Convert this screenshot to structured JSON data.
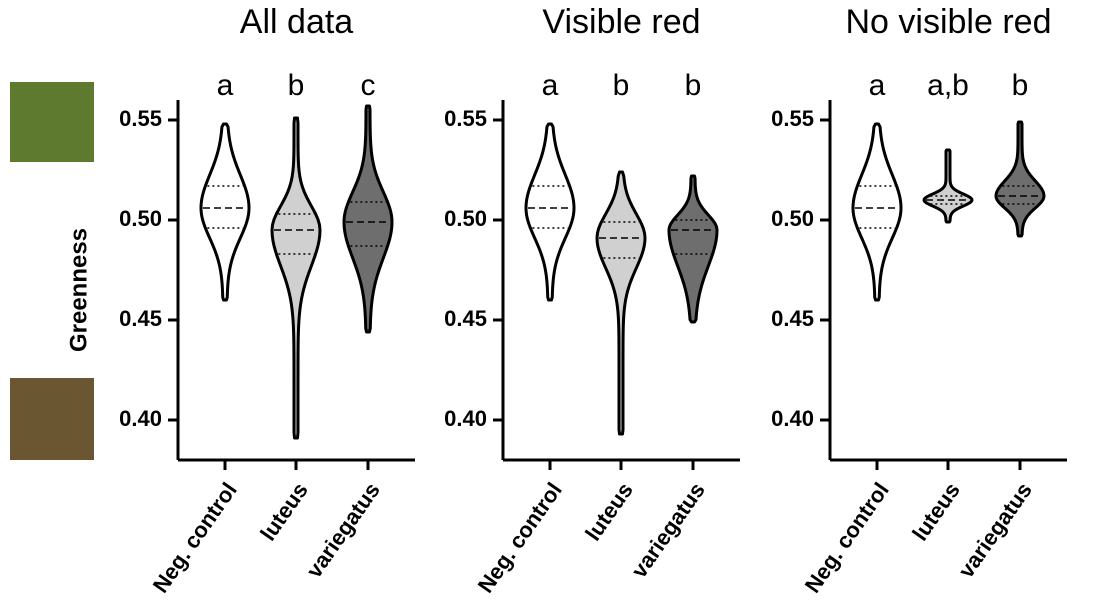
{
  "chart_data": [
    {
      "type": "violin",
      "title": "All data",
      "y_label": "Greenness",
      "categories": [
        "Neg. control",
        "luteus",
        "variegatus"
      ],
      "letters": [
        "a",
        "b",
        "c"
      ],
      "colors": [
        "#ffffff",
        "#d0d0d0",
        "#6e6e6e"
      ],
      "min": [
        0.46,
        0.391,
        0.444
      ],
      "q1": [
        0.496,
        0.483,
        0.487
      ],
      "median": [
        0.506,
        0.495,
        0.499
      ],
      "q3": [
        0.517,
        0.503,
        0.509
      ],
      "max": [
        0.548,
        0.551,
        0.557
      ],
      "ylim": [
        0.38,
        0.56
      ],
      "yticks": [
        {
          "value": 0.4,
          "label": "0.40"
        },
        0.45,
        {
          "value": 0.5,
          "label": "0.50"
        },
        0.55
      ]
    },
    {
      "type": "violin",
      "title": "Visible red",
      "categories": [
        "Neg. control",
        "luteus",
        "variegatus"
      ],
      "letters": [
        "a",
        "b",
        "b"
      ],
      "colors": [
        "#ffffff",
        "#d0d0d0",
        "#6e6e6e"
      ],
      "min": [
        0.46,
        0.393,
        0.449
      ],
      "q1": [
        0.496,
        0.481,
        0.483
      ],
      "median": [
        0.506,
        0.491,
        0.495
      ],
      "q3": [
        0.517,
        0.499,
        0.5
      ],
      "max": [
        0.548,
        0.524,
        0.522
      ],
      "ylim": [
        0.38,
        0.56
      ],
      "yticks": [
        {
          "value": 0.4,
          "label": "0.40"
        },
        0.45,
        {
          "value": 0.5,
          "label": "0.50"
        },
        0.55
      ]
    },
    {
      "type": "violin",
      "title": "No visible red",
      "categories": [
        "Neg. control",
        "luteus",
        "variegatus"
      ],
      "letters": [
        "a",
        "a,b",
        "b"
      ],
      "colors": [
        "#ffffff",
        "#d0d0d0",
        "#6e6e6e"
      ],
      "min": [
        0.46,
        0.499,
        0.492
      ],
      "q1": [
        0.496,
        0.508,
        0.508
      ],
      "median": [
        0.506,
        0.51,
        0.512
      ],
      "q3": [
        0.517,
        0.512,
        0.517
      ],
      "max": [
        0.548,
        0.535,
        0.549
      ],
      "ylim": [
        0.38,
        0.56
      ],
      "yticks": [
        {
          "value": 0.4,
          "label": "0.40"
        },
        0.45,
        {
          "value": 0.5,
          "label": "0.50"
        },
        0.55
      ]
    }
  ]
}
